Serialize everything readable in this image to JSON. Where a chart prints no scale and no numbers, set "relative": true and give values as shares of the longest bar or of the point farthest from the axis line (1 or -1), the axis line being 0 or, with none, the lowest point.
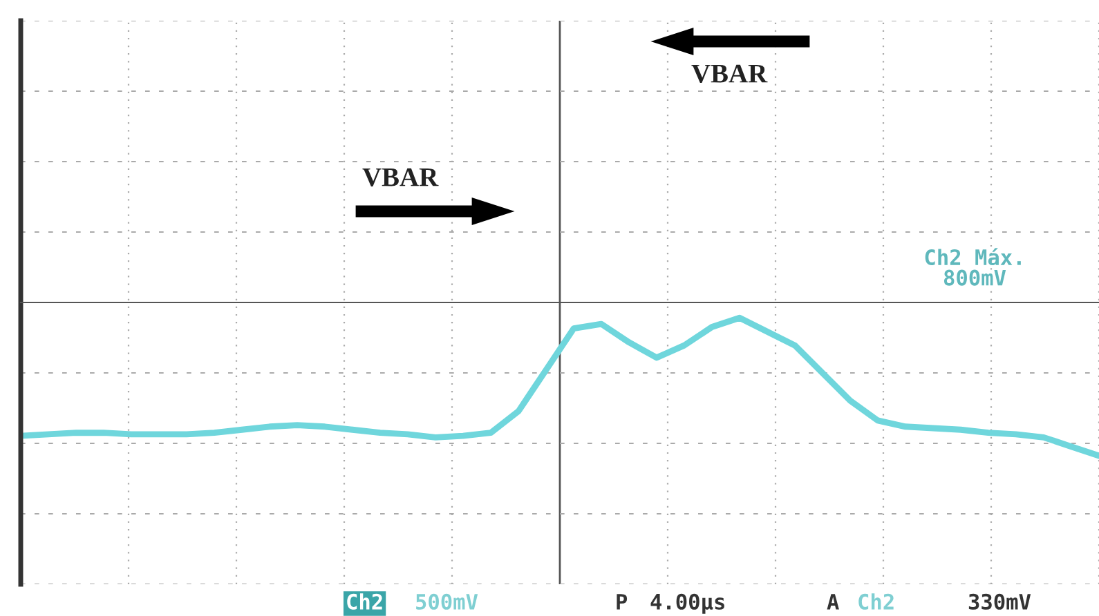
{
  "chart_data": {
    "type": "line",
    "relative": true,
    "grid": true,
    "legend": false,
    "marker": "none",
    "line_style": "solid",
    "categories": [
      null,
      null,
      null,
      null,
      null,
      null,
      null,
      null,
      null,
      null,
      null,
      null,
      null,
      null,
      null,
      null,
      null,
      null,
      null,
      null,
      null,
      null,
      null,
      null,
      null,
      null,
      null,
      null,
      null,
      null,
      null,
      null,
      null,
      null,
      null,
      null,
      null,
      null,
      null,
      null
    ],
    "series": [
      {
        "color": "#6fd6dc",
        "values": [
          -0.87,
          -0.86,
          -0.85,
          -0.85,
          -0.86,
          -0.86,
          -0.86,
          -0.85,
          -0.83,
          -0.81,
          -0.8,
          -0.81,
          -0.83,
          -0.85,
          -0.86,
          -0.88,
          -0.87,
          -0.85,
          -0.71,
          -0.44,
          -0.17,
          -0.14,
          -0.26,
          -0.36,
          -0.28,
          -0.16,
          -0.1,
          -0.19,
          -0.28,
          -0.46,
          -0.64,
          -0.77,
          -0.81,
          -0.82,
          -0.83,
          -0.85,
          -0.86,
          -0.88,
          -0.94,
          -1.0
        ]
      }
    ],
    "annotations": [
      "VBAR",
      "VBAR",
      "Ch2 Máx.\n800mV",
      "Ch2",
      "500mV",
      "P",
      "4.00µs",
      "A",
      "Ch2",
      "330mV"
    ]
  }
}
